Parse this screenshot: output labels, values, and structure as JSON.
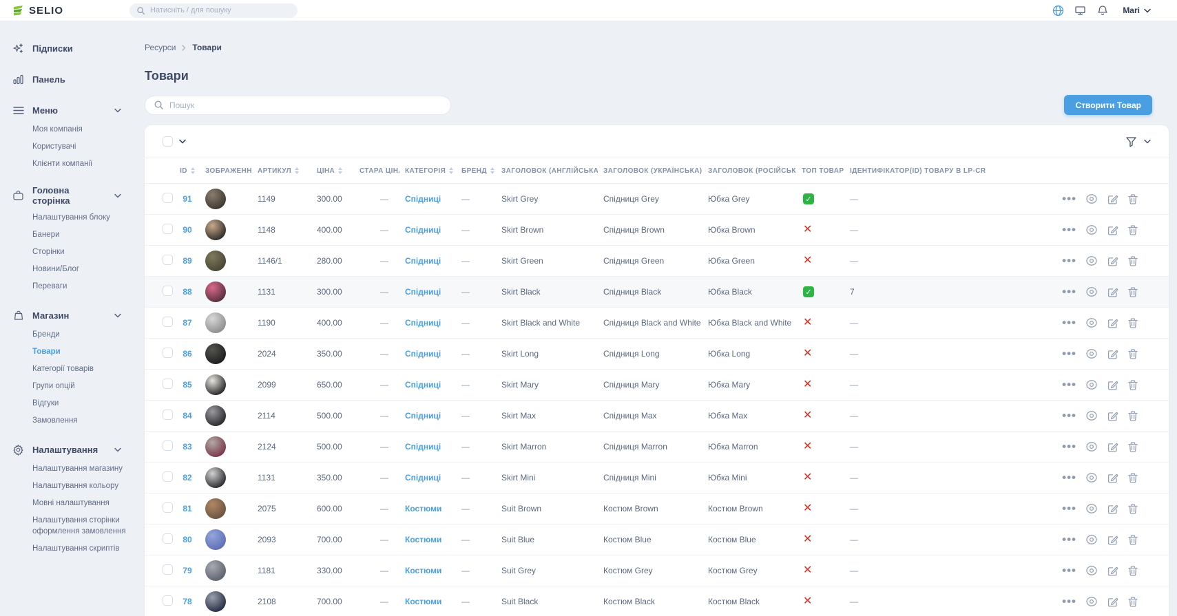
{
  "topbar": {
    "logo_text": "SELIO",
    "search_placeholder": "Натисніть / для пошуку",
    "user_name": "Mari",
    "icons": [
      "globe-icon",
      "monitor-icon",
      "bell-icon"
    ]
  },
  "colors": {
    "accent": "#4a9fe3",
    "success": "#2fb344",
    "danger": "#dd2b1c"
  },
  "sidebar": {
    "sections": [
      {
        "label": "Підписки",
        "icon": "sparkles-icon",
        "children": []
      },
      {
        "label": "Панель",
        "icon": "bar-chart-icon",
        "children": []
      },
      {
        "label": "Меню",
        "icon": "menu-icon",
        "expanded": true,
        "children": [
          "Моя компанія",
          "Користувачі",
          "Клієнти компанії"
        ]
      },
      {
        "label": "Головна сторінка",
        "icon": "briefcase-icon",
        "expanded": true,
        "children": [
          "Налаштування блоку",
          "Банери",
          "Сторінки",
          "Новини/Блог",
          "Переваги"
        ]
      },
      {
        "label": "Магазин",
        "icon": "shopping-bag-icon",
        "expanded": true,
        "active_child": "Товари",
        "children": [
          "Бренди",
          "Товари",
          "Категорії товарів",
          "Групи опцій",
          "Відгуки",
          "Замовлення"
        ]
      },
      {
        "label": "Налаштування",
        "icon": "gear-icon",
        "expanded": true,
        "children": [
          "Налаштування магазину",
          "Налаштування кольору",
          "Мовні налаштування",
          "Налаштування сторінки оформлення замовлення",
          "Налаштування скриптів"
        ]
      }
    ]
  },
  "breadcrumb": {
    "root": "Ресурси",
    "current": "Товари"
  },
  "page": {
    "title": "Товари",
    "search_placeholder": "Пошук",
    "create_button": "Створити Товар"
  },
  "table": {
    "headers": [
      {
        "label": "ID",
        "sortable": true
      },
      {
        "label": "ЗОБРАЖЕННЯ",
        "sortable": false
      },
      {
        "label": "АРТИКУЛ",
        "sortable": true
      },
      {
        "label": "ЦІНА",
        "sortable": true
      },
      {
        "label": "СТАРА ЦІНА",
        "sortable": false
      },
      {
        "label": "КАТЕГОРІЯ",
        "sortable": true
      },
      {
        "label": "БРЕНД",
        "sortable": true
      },
      {
        "label": "ЗАГОЛОВОК (АНГЛІЙСЬКА)",
        "sortable": false
      },
      {
        "label": "ЗАГОЛОВОК (УКРАЇНСЬКА)",
        "sortable": false
      },
      {
        "label": "ЗАГОЛОВОК (РОСІЙСЬКА)",
        "sortable": false
      },
      {
        "label": "ТОП ТОВАР",
        "sortable": false
      },
      {
        "label": "ІДЕНТИФІКАТОР(ID) ТОВАРУ В LP-CRM",
        "sortable": false
      }
    ],
    "row_actions": [
      "more-options",
      "view",
      "edit",
      "delete"
    ],
    "rows": [
      {
        "id": "91",
        "sku": "1149",
        "price": "300.00",
        "old_price": "—",
        "category": "Спідниці",
        "brand": "—",
        "title_en": "Skirt Grey",
        "title_uk": "Спідниця Grey",
        "title_ru": "Юбка Grey",
        "top": true,
        "lp_id": "—",
        "highlight": false,
        "avatar_colors": [
          "#8a7d6e",
          "#3f3a33"
        ]
      },
      {
        "id": "90",
        "sku": "1148",
        "price": "400.00",
        "old_price": "—",
        "category": "Спідниці",
        "brand": "—",
        "title_en": "Skirt Brown",
        "title_uk": "Спідниця Brown",
        "title_ru": "Юбка Brown",
        "top": false,
        "lp_id": "—",
        "highlight": false,
        "avatar_colors": [
          "#c9a98c",
          "#33302b"
        ]
      },
      {
        "id": "89",
        "sku": "1146/1",
        "price": "280.00",
        "old_price": "—",
        "category": "Спідниці",
        "brand": "—",
        "title_en": "Skirt Green",
        "title_uk": "Спідниця Green",
        "title_ru": "Юбка Green",
        "top": false,
        "lp_id": "—",
        "highlight": false,
        "avatar_colors": [
          "#7d7a5e",
          "#4a4636"
        ]
      },
      {
        "id": "88",
        "sku": "1131",
        "price": "300.00",
        "old_price": "—",
        "category": "Спідниці",
        "brand": "—",
        "title_en": "Skirt Black",
        "title_uk": "Спідниця Black",
        "title_ru": "Юбка Black",
        "top": true,
        "lp_id": "7",
        "highlight": true,
        "avatar_colors": [
          "#d96a8a",
          "#5a3040"
        ]
      },
      {
        "id": "87",
        "sku": "1190",
        "price": "400.00",
        "old_price": "—",
        "category": "Спідниці",
        "brand": "—",
        "title_en": "Skirt Black and White",
        "title_uk": "Спідниця Black and White",
        "title_ru": "Юбка Black and White",
        "top": false,
        "lp_id": "—",
        "highlight": false,
        "avatar_colors": [
          "#d8d8d8",
          "#8f8f8f"
        ]
      },
      {
        "id": "86",
        "sku": "2024",
        "price": "350.00",
        "old_price": "—",
        "category": "Спідниці",
        "brand": "—",
        "title_en": "Skirt Long",
        "title_uk": "Спідниця Long",
        "title_ru": "Юбка Long",
        "top": false,
        "lp_id": "—",
        "highlight": false,
        "avatar_colors": [
          "#55554f",
          "#1e1e1e"
        ]
      },
      {
        "id": "85",
        "sku": "2099",
        "price": "650.00",
        "old_price": "—",
        "category": "Спідниці",
        "brand": "—",
        "title_en": "Skirt Mary",
        "title_uk": "Спідниця Mary",
        "title_ru": "Юбка Mary",
        "top": false,
        "lp_id": "—",
        "highlight": false,
        "avatar_colors": [
          "#e9e6df",
          "#2b2b2b"
        ]
      },
      {
        "id": "84",
        "sku": "2114",
        "price": "500.00",
        "old_price": "—",
        "category": "Спідниці",
        "brand": "—",
        "title_en": "Skirt Max",
        "title_uk": "Спідниця Max",
        "title_ru": "Юбка Max",
        "top": false,
        "lp_id": "—",
        "highlight": false,
        "avatar_colors": [
          "#9a9aa0",
          "#2c2c30"
        ]
      },
      {
        "id": "83",
        "sku": "2124",
        "price": "500.00",
        "old_price": "—",
        "category": "Спідниці",
        "brand": "—",
        "title_en": "Skirt Marron",
        "title_uk": "Спідниця Marron",
        "title_ru": "Юбка Marron",
        "top": false,
        "lp_id": "—",
        "highlight": false,
        "avatar_colors": [
          "#b0aaa4",
          "#7c3a4a"
        ]
      },
      {
        "id": "82",
        "sku": "1131",
        "price": "350.00",
        "old_price": "—",
        "category": "Спідниці",
        "brand": "—",
        "title_en": "Skirt Mini",
        "title_uk": "Спідниця Mini",
        "title_ru": "Юбка Mini",
        "top": false,
        "lp_id": "—",
        "highlight": false,
        "avatar_colors": [
          "#d2d2d2",
          "#2f2f33"
        ]
      },
      {
        "id": "81",
        "sku": "2075",
        "price": "600.00",
        "old_price": "—",
        "category": "Костюми",
        "brand": "—",
        "title_en": "Suit Brown",
        "title_uk": "Костюм Brown",
        "title_ru": "Костюм Brown",
        "top": false,
        "lp_id": "—",
        "highlight": false,
        "avatar_colors": [
          "#b08868",
          "#6e5440"
        ]
      },
      {
        "id": "80",
        "sku": "2093",
        "price": "700.00",
        "old_price": "—",
        "category": "Костюми",
        "brand": "—",
        "title_en": "Suit Blue",
        "title_uk": "Костюм Blue",
        "title_ru": "Костюм Blue",
        "top": false,
        "lp_id": "—",
        "highlight": false,
        "avatar_colors": [
          "#96a5dc",
          "#5f70b5"
        ]
      },
      {
        "id": "79",
        "sku": "1181",
        "price": "330.00",
        "old_price": "—",
        "category": "Костюми",
        "brand": "—",
        "title_en": "Suit Grey",
        "title_uk": "Костюм Grey",
        "title_ru": "Костюм Grey",
        "top": false,
        "lp_id": "—",
        "highlight": false,
        "avatar_colors": [
          "#a8aab2",
          "#5f6470"
        ]
      },
      {
        "id": "78",
        "sku": "2108",
        "price": "700.00",
        "old_price": "—",
        "category": "Костюми",
        "brand": "—",
        "title_en": "Suit Black",
        "title_uk": "Костюм Black",
        "title_ru": "Костюм Black",
        "top": false,
        "lp_id": "—",
        "highlight": false,
        "avatar_colors": [
          "#9aa0ad",
          "#2a3045"
        ]
      }
    ]
  }
}
